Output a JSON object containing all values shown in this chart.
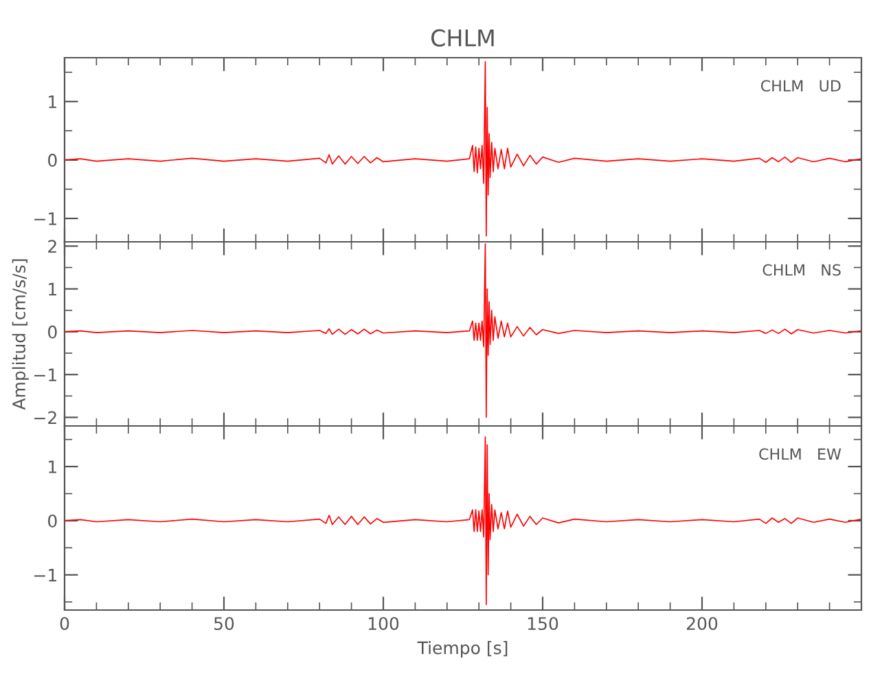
{
  "chart_data": [
    {
      "type": "line",
      "title": "CHLM",
      "annotations": [
        "CHLM   UD"
      ],
      "tick_labels": "y",
      "grid": false,
      "xlim": [
        0,
        250
      ],
      "xticks": [
        0,
        {
          "value": 10,
          "label": null
        },
        {
          "value": 20,
          "label": null
        },
        {
          "value": 30,
          "label": null
        },
        {
          "value": 40,
          "label": null
        },
        50,
        {
          "value": 60,
          "label": null
        },
        {
          "value": 70,
          "label": null
        },
        {
          "value": 80,
          "label": null
        },
        {
          "value": 90,
          "label": null
        },
        100,
        {
          "value": 110,
          "label": null
        },
        {
          "value": 120,
          "label": null
        },
        {
          "value": 130,
          "label": null
        },
        {
          "value": 140,
          "label": null
        },
        150,
        {
          "value": 160,
          "label": null
        },
        {
          "value": 170,
          "label": null
        },
        {
          "value": 180,
          "label": null
        },
        {
          "value": 190,
          "label": null
        },
        200,
        {
          "value": 210,
          "label": null
        },
        {
          "value": 220,
          "label": null
        },
        {
          "value": 230,
          "label": null
        },
        {
          "value": 240,
          "label": null
        }
      ],
      "ylim": [
        -1.4,
        1.75
      ],
      "yticks": [
        {
          "value": -1,
          "label": "−1"
        },
        {
          "value": -0.5,
          "label": null
        },
        0,
        {
          "value": 0.5,
          "label": null
        },
        1,
        {
          "value": 1.5,
          "label": null
        }
      ],
      "series": [
        {
          "color": "#ff0000",
          "x": [
            0,
            5,
            10,
            20,
            30,
            40,
            50,
            60,
            70,
            80,
            82,
            83,
            84,
            86,
            88,
            90,
            92,
            94,
            96,
            98,
            100,
            110,
            120,
            127,
            128,
            128.5,
            129,
            129.5,
            130,
            130.5,
            131,
            131.5,
            132,
            132.3,
            132.6,
            132.9,
            133.2,
            133.5,
            134,
            134.5,
            135,
            136,
            137,
            138,
            139,
            140,
            142,
            144,
            146,
            148,
            150,
            155,
            160,
            170,
            180,
            190,
            200,
            210,
            218,
            220,
            222,
            224,
            226,
            228,
            230,
            235,
            240,
            245,
            250
          ],
          "values": [
            0,
            0.02,
            -0.02,
            0.02,
            -0.02,
            0.03,
            -0.02,
            0.02,
            -0.02,
            0.03,
            -0.05,
            0.09,
            -0.07,
            0.07,
            -0.07,
            0.06,
            -0.06,
            0.06,
            -0.05,
            0.04,
            -0.03,
            0.02,
            -0.02,
            0.02,
            0.25,
            -0.2,
            0.22,
            -0.22,
            0.2,
            -0.15,
            0.25,
            -0.4,
            1.68,
            -1.3,
            0.9,
            -0.6,
            0.45,
            -0.3,
            0.3,
            -0.2,
            0.2,
            -0.15,
            0.18,
            -0.15,
            0.2,
            -0.12,
            0.1,
            -0.1,
            0.08,
            -0.07,
            0.05,
            -0.04,
            0.03,
            -0.02,
            0.02,
            -0.02,
            0.02,
            -0.02,
            0.03,
            -0.04,
            0.04,
            -0.03,
            0.05,
            -0.04,
            0.04,
            -0.03,
            0.03,
            -0.03,
            0.02
          ]
        }
      ]
    },
    {
      "type": "line",
      "ylabel": "Amplitud [cm/s/s]",
      "annotations": [
        "CHLM   NS"
      ],
      "tick_labels": "y",
      "grid": false,
      "xlim": [
        0,
        250
      ],
      "xticks": [
        0,
        {
          "value": 10,
          "label": null
        },
        {
          "value": 20,
          "label": null
        },
        {
          "value": 30,
          "label": null
        },
        {
          "value": 40,
          "label": null
        },
        50,
        {
          "value": 60,
          "label": null
        },
        {
          "value": 70,
          "label": null
        },
        {
          "value": 80,
          "label": null
        },
        {
          "value": 90,
          "label": null
        },
        100,
        {
          "value": 110,
          "label": null
        },
        {
          "value": 120,
          "label": null
        },
        {
          "value": 130,
          "label": null
        },
        {
          "value": 140,
          "label": null
        },
        150,
        {
          "value": 160,
          "label": null
        },
        {
          "value": 170,
          "label": null
        },
        {
          "value": 180,
          "label": null
        },
        {
          "value": 190,
          "label": null
        },
        200,
        {
          "value": 210,
          "label": null
        },
        {
          "value": 220,
          "label": null
        },
        {
          "value": 230,
          "label": null
        },
        {
          "value": 240,
          "label": null
        }
      ],
      "ylim": [
        -2.2,
        2.1
      ],
      "yticks": [
        {
          "value": -2,
          "label": "−2"
        },
        {
          "value": -1.5,
          "label": null
        },
        {
          "value": -1,
          "label": "−1"
        },
        {
          "value": -0.5,
          "label": null
        },
        0,
        {
          "value": 0.5,
          "label": null
        },
        1,
        {
          "value": 1.5,
          "label": null
        },
        2
      ],
      "series": [
        {
          "color": "#ff0000",
          "x": [
            0,
            5,
            10,
            20,
            30,
            40,
            50,
            60,
            70,
            80,
            82,
            83,
            84,
            86,
            88,
            90,
            92,
            94,
            96,
            98,
            100,
            110,
            120,
            127,
            128,
            128.5,
            129,
            129.5,
            130,
            130.5,
            131,
            131.5,
            132,
            132.3,
            132.6,
            132.9,
            133.2,
            133.5,
            134,
            134.5,
            135,
            136,
            137,
            138,
            139,
            140,
            142,
            144,
            146,
            148,
            150,
            155,
            160,
            170,
            180,
            190,
            200,
            210,
            218,
            220,
            222,
            224,
            226,
            228,
            230,
            235,
            240,
            245,
            250
          ],
          "values": [
            0,
            0.02,
            -0.02,
            0.02,
            -0.02,
            0.03,
            -0.02,
            0.02,
            -0.02,
            0.03,
            -0.04,
            0.07,
            -0.06,
            0.06,
            -0.06,
            0.05,
            -0.05,
            0.06,
            -0.05,
            0.04,
            -0.03,
            0.02,
            -0.02,
            0.02,
            0.25,
            -0.2,
            0.2,
            -0.2,
            0.2,
            -0.2,
            0.25,
            -0.35,
            2.05,
            -2.0,
            1.0,
            -0.55,
            0.7,
            -0.3,
            0.5,
            -0.2,
            0.35,
            -0.15,
            0.25,
            -0.12,
            0.2,
            -0.12,
            0.12,
            -0.1,
            0.1,
            -0.07,
            0.05,
            -0.04,
            0.03,
            -0.02,
            0.02,
            -0.02,
            0.02,
            -0.02,
            0.03,
            -0.04,
            0.04,
            -0.04,
            0.06,
            -0.05,
            0.05,
            -0.03,
            0.03,
            -0.03,
            0.02
          ]
        }
      ]
    },
    {
      "type": "line",
      "xlabel": "Tiempo [s]",
      "annotations": [
        "CHLM   EW"
      ],
      "grid": false,
      "xlim": [
        0,
        250
      ],
      "xticks": [
        0,
        {
          "value": 10,
          "label": null
        },
        {
          "value": 20,
          "label": null
        },
        {
          "value": 30,
          "label": null
        },
        {
          "value": 40,
          "label": null
        },
        50,
        {
          "value": 60,
          "label": null
        },
        {
          "value": 70,
          "label": null
        },
        {
          "value": 80,
          "label": null
        },
        {
          "value": 90,
          "label": null
        },
        100,
        {
          "value": 110,
          "label": null
        },
        {
          "value": 120,
          "label": null
        },
        {
          "value": 130,
          "label": null
        },
        {
          "value": 140,
          "label": null
        },
        150,
        {
          "value": 160,
          "label": null
        },
        {
          "value": 170,
          "label": null
        },
        {
          "value": 180,
          "label": null
        },
        {
          "value": 190,
          "label": null
        },
        200,
        {
          "value": 210,
          "label": null
        },
        {
          "value": 220,
          "label": null
        },
        {
          "value": 230,
          "label": null
        },
        {
          "value": 240,
          "label": null
        }
      ],
      "ylim": [
        -1.65,
        1.75
      ],
      "yticks": [
        {
          "value": -1.5,
          "label": null
        },
        {
          "value": -1,
          "label": "−1"
        },
        {
          "value": -0.5,
          "label": null
        },
        0,
        {
          "value": 0.5,
          "label": null
        },
        1,
        {
          "value": 1.5,
          "label": null
        }
      ],
      "series": [
        {
          "color": "#ff0000",
          "x": [
            0,
            5,
            10,
            20,
            30,
            40,
            50,
            60,
            70,
            80,
            82,
            83,
            84,
            86,
            88,
            90,
            92,
            94,
            96,
            98,
            100,
            110,
            120,
            127,
            128,
            128.5,
            129,
            129.5,
            130,
            130.5,
            131,
            131.5,
            132,
            132.3,
            132.6,
            132.9,
            133.2,
            133.5,
            134,
            134.5,
            135,
            136,
            137,
            138,
            139,
            140,
            142,
            144,
            146,
            148,
            150,
            155,
            160,
            170,
            180,
            190,
            200,
            210,
            218,
            220,
            222,
            224,
            226,
            228,
            230,
            235,
            240,
            245,
            250
          ],
          "values": [
            0,
            0.02,
            -0.02,
            0.02,
            -0.02,
            0.03,
            -0.02,
            0.02,
            -0.02,
            0.03,
            -0.05,
            0.1,
            -0.07,
            0.07,
            -0.07,
            0.08,
            -0.07,
            0.07,
            -0.06,
            0.04,
            -0.03,
            0.02,
            -0.02,
            0.02,
            0.2,
            -0.2,
            0.2,
            -0.2,
            0.18,
            -0.2,
            0.2,
            -0.3,
            1.55,
            -1.55,
            1.4,
            -1.0,
            0.5,
            -0.35,
            0.3,
            -0.2,
            0.2,
            -0.15,
            0.15,
            -0.15,
            0.18,
            -0.12,
            0.12,
            -0.1,
            0.08,
            -0.07,
            0.05,
            -0.04,
            0.03,
            -0.02,
            0.02,
            -0.02,
            0.02,
            -0.02,
            0.03,
            -0.05,
            0.05,
            -0.03,
            0.04,
            -0.05,
            0.05,
            -0.03,
            0.03,
            -0.03,
            0.03
          ]
        }
      ]
    }
  ]
}
